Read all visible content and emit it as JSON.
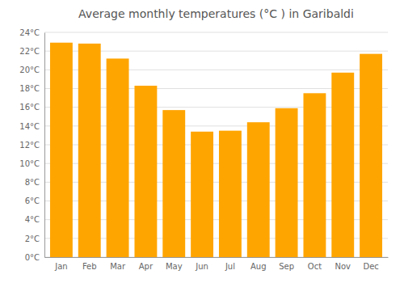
{
  "chart_data": {
    "type": "bar",
    "title": "Average monthly temperatures (°C ) in Garibaldi",
    "categories": [
      "Jan",
      "Feb",
      "Mar",
      "Apr",
      "May",
      "Jun",
      "Jul",
      "Aug",
      "Sep",
      "Oct",
      "Nov",
      "Dec"
    ],
    "values": [
      22.9,
      22.8,
      21.2,
      18.3,
      15.7,
      13.4,
      13.5,
      14.4,
      15.9,
      17.5,
      19.7,
      21.7
    ],
    "color": "#FFA500",
    "ylim": [
      0,
      24
    ],
    "yticks": [
      {
        "value": 0,
        "label": "0°C"
      },
      {
        "value": 2,
        "label": "2°C"
      },
      {
        "value": 4,
        "label": "4°C"
      },
      {
        "value": 6,
        "label": "6°C"
      },
      {
        "value": 8,
        "label": "8°C"
      },
      {
        "value": 10,
        "label": "10°C"
      },
      {
        "value": 12,
        "label": "12°C"
      },
      {
        "value": 14,
        "label": "14°C"
      },
      {
        "value": 16,
        "label": "16°C"
      },
      {
        "value": 18,
        "label": "18°C"
      },
      {
        "value": 20,
        "label": "20°C"
      },
      {
        "value": 22,
        "label": "22°C"
      },
      {
        "value": 24,
        "label": "24°C"
      }
    ],
    "grid": true
  }
}
